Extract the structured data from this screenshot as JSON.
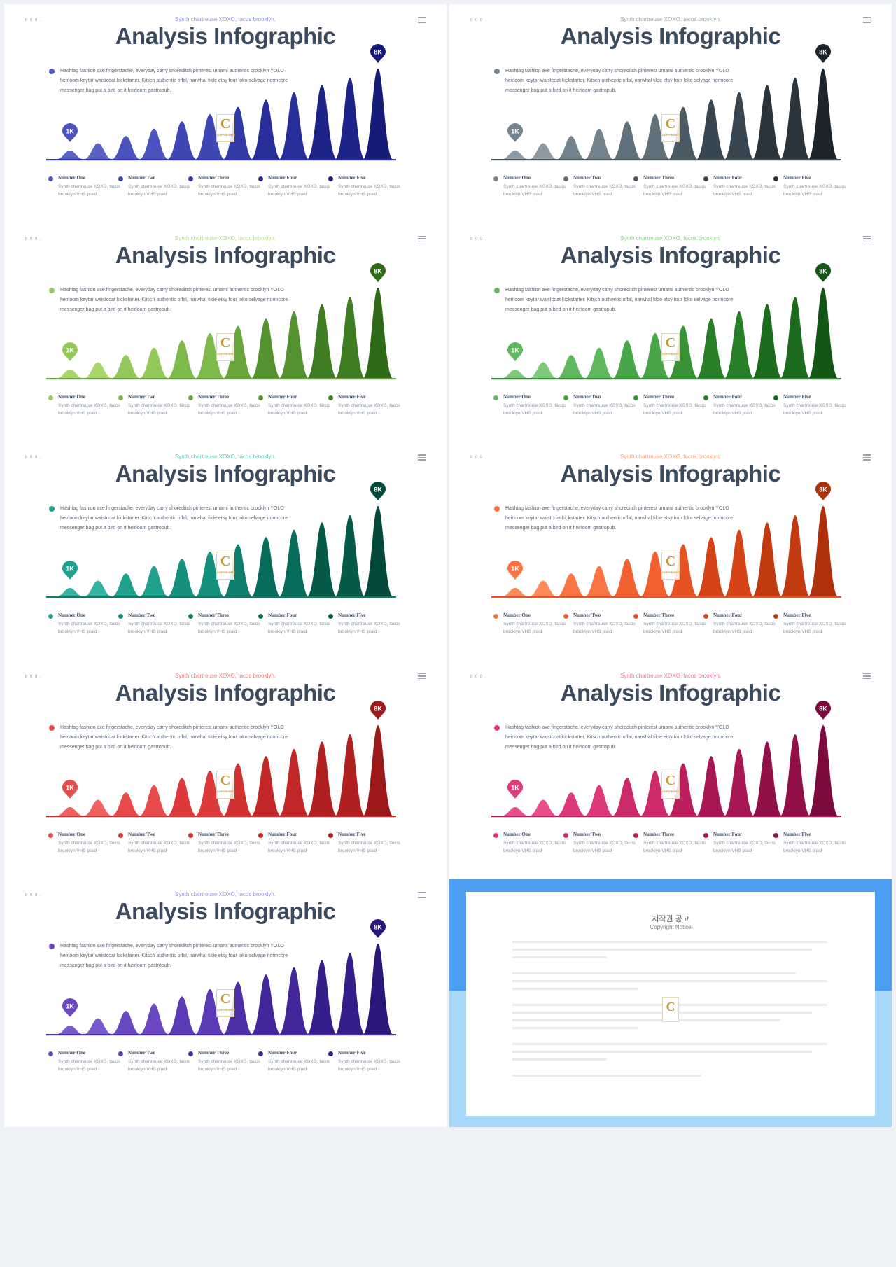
{
  "page_label": "8 0 8 .",
  "title": "Analysis Infographic",
  "subtitle": "Synth chartreuse XOXO, tacos brooklyn.",
  "paragraph": "Hashtag fashion axe fingerstache, everyday carry shoreditch pinterest umami authentic brooklyn YOLO heirloom keytar waistcoat kickstarter. Kitsch authentic offal, narwhal tilde etsy four loko selvage normcore messenger bag put a bird on it heirloom gastropub.",
  "pin_low": "1K",
  "pin_high": "8K",
  "legend": [
    {
      "name": "Number One",
      "desc": "Synth chartreuse XOXO, tacos brooklyn VHS plaid"
    },
    {
      "name": "Number Two",
      "desc": "Synth chartreuse XOXO, tacos brooklyn VHS plaid"
    },
    {
      "name": "Number Three",
      "desc": "Synth chartreuse XOXO, tacos brooklyn VHS plaid"
    },
    {
      "name": "Number Four",
      "desc": "Synth chartreuse XOXO, tacos brooklyn VHS plaid"
    },
    {
      "name": "Number Five",
      "desc": "Synth chartreuse XOXO, tacos brooklyn VHS plaid"
    }
  ],
  "peaks": [
    1,
    1.8,
    2.6,
    3.4,
    4.2,
    5,
    5.8,
    6.6,
    7.4,
    8.2,
    9,
    10
  ],
  "logo_letter": "C",
  "logo_text": "COPYRIGHTS",
  "themes": [
    {
      "colors": [
        "#5a62c4",
        "#4b53bf",
        "#3f47b5",
        "#333aa8",
        "#282e99",
        "#1e238a",
        "#171b78"
      ],
      "sub": "#8c92d8"
    },
    {
      "colors": [
        "#8a99a3",
        "#74848f",
        "#5f707b",
        "#4b5b66",
        "#384651",
        "#29343d",
        "#1d252c"
      ],
      "sub": "#9aa5ad"
    },
    {
      "colors": [
        "#a8d66a",
        "#93c95a",
        "#7eb94b",
        "#68a63c",
        "#54922f",
        "#3f7d23",
        "#2f6a19"
      ],
      "sub": "#b6d890"
    },
    {
      "colors": [
        "#7fca7a",
        "#5fb85d",
        "#48a548",
        "#379236",
        "#287f28",
        "#1d6b1e",
        "#145616"
      ],
      "sub": "#8fcf8d"
    },
    {
      "colors": [
        "#33b3a0",
        "#1fa18e",
        "#14907d",
        "#0d7e6b",
        "#086c5a",
        "#055a4a",
        "#03493c"
      ],
      "sub": "#5fc4b3"
    },
    {
      "colors": [
        "#ff8a5c",
        "#fb7443",
        "#f2602f",
        "#e65221",
        "#d44417",
        "#c23a10",
        "#ad310b"
      ],
      "sub": "#ff9c77"
    },
    {
      "colors": [
        "#f06262",
        "#e84b4b",
        "#dd3b3b",
        "#d13131",
        "#c22828",
        "#b02020",
        "#9c1919"
      ],
      "sub": "#f17b7b"
    },
    {
      "colors": [
        "#e8508a",
        "#dc3a79",
        "#cd2a6a",
        "#bb1f5e",
        "#a71753",
        "#921048",
        "#7d0a3e"
      ],
      "sub": "#e87aa3"
    },
    {
      "colors": [
        "#7a5acb",
        "#6b48c2",
        "#5c3ab6",
        "#4f2fa8",
        "#42269a",
        "#361e8a",
        "#2b177a"
      ],
      "sub": "#a190dc"
    }
  ],
  "notice": {
    "title": "저작권 공고",
    "subtitle": "Copyright Notice"
  }
}
